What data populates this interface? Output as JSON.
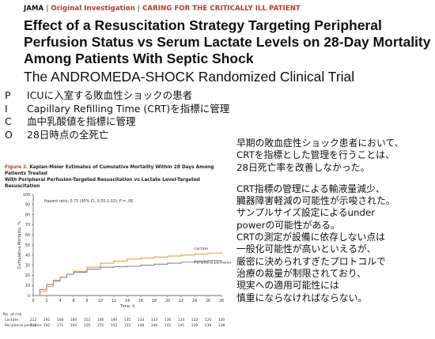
{
  "header": {
    "journal": "JAMA",
    "category": "Original Investigation",
    "series": "CARING FOR THE CRITICALLY ILL PATIENT"
  },
  "title": {
    "line1": "Effect of a Resuscitation Strategy Targeting Peripheral",
    "line2": "Perfusion Status vs Serum Lactate Levels on 28-Day Mortality",
    "line3": "Among Patients With Septic Shock",
    "subtitle": "The ANDROMEDA-SHOCK Randomized Clinical Trial"
  },
  "pico": [
    {
      "key": "P",
      "text": "ICUに入室する敗血性ショックの患者"
    },
    {
      "key": "I",
      "text": "Capillary Refilling Time (CRT)を指標に管理"
    },
    {
      "key": "C",
      "text": "血中乳酸値を指標に管理"
    },
    {
      "key": "O",
      "text": "28日時点の全死亡"
    }
  ],
  "summary": {
    "p1": [
      "早期の敗血症性ショック患者において、",
      "CRTを指標とした管理を行うことは、",
      "28日死亡率を改善しなかった。"
    ],
    "p2": [
      "CRT指標の管理による輸液量減少、",
      "臓器障害軽減の可能性が示唆された。",
      "サンプルサイズ設定によるunder",
      "powerの可能性がある。",
      "CRTの測定が設備に依存しない点は",
      "一般化可能性が高いといえるが、",
      "厳密に決められすぎたプロトコルで",
      "治療の裁量が制限されており、",
      "現実への適用可能性には",
      "慎重にならなければならない。"
    ]
  },
  "figure": {
    "label": "Figure 2.",
    "title_line1": "Kaplan-Meier Estimates of Cumulative Mortality Within 28 Days Among Patients Treated",
    "title_line2": "With Peripheral Perfusion-Targeted Resuscitation vs Lactate Level-Targeted Resuscitation",
    "at_risk_label": "No. at risk",
    "at_risk": [
      {
        "name": "Lactate",
        "values": [
          212,
          192,
          168,
          160,
          152,
          146,
          140,
          135,
          134,
          133,
          130,
          124,
          122,
          120,
          120
        ]
      },
      {
        "name": "Peripheral perfusion",
        "values": [
          212,
          182,
          171,
          164,
          159,
          155,
          152,
          152,
          148,
          146,
          142,
          141,
          139,
          138,
          138
        ]
      }
    ],
    "colors": {
      "lactate": "#e8a33a",
      "perfusion": "#8a8a8a"
    }
  },
  "chart_data": {
    "type": "line",
    "title": "",
    "annotation": "Hazard ratio, 0.75 (95% CI, 0.55-1.02); P = .06",
    "xlabel": "Time, d",
    "ylabel": "Cumulative Mortality, %",
    "xlim": [
      0,
      28
    ],
    "ylim": [
      0,
      100
    ],
    "x_ticks": [
      0,
      2,
      4,
      6,
      8,
      10,
      12,
      14,
      16,
      18,
      20,
      22,
      24,
      26,
      28
    ],
    "y_ticks": [
      0,
      10,
      20,
      30,
      40,
      50,
      60,
      70,
      80,
      90,
      100
    ],
    "series": [
      {
        "name": "Lactate",
        "color": "#e8a33a",
        "x": [
          0,
          1,
          2,
          3,
          4,
          5,
          6,
          8,
          10,
          12,
          14,
          16,
          18,
          20,
          22,
          24,
          26,
          28
        ],
        "y": [
          0,
          4,
          9,
          14,
          18,
          21,
          24,
          28,
          32,
          34,
          36,
          37,
          38,
          39,
          40,
          41,
          42,
          43
        ]
      },
      {
        "name": "Peripheral perfusion",
        "color": "#8a8a8a",
        "x": [
          0,
          1,
          2,
          3,
          4,
          5,
          6,
          8,
          10,
          12,
          14,
          16,
          18,
          20,
          22,
          24,
          26,
          28
        ],
        "y": [
          0,
          6,
          11,
          15,
          18,
          21,
          23,
          26,
          28,
          28.5,
          29,
          30,
          31,
          32,
          33,
          34,
          34.5,
          35
        ]
      }
    ]
  }
}
